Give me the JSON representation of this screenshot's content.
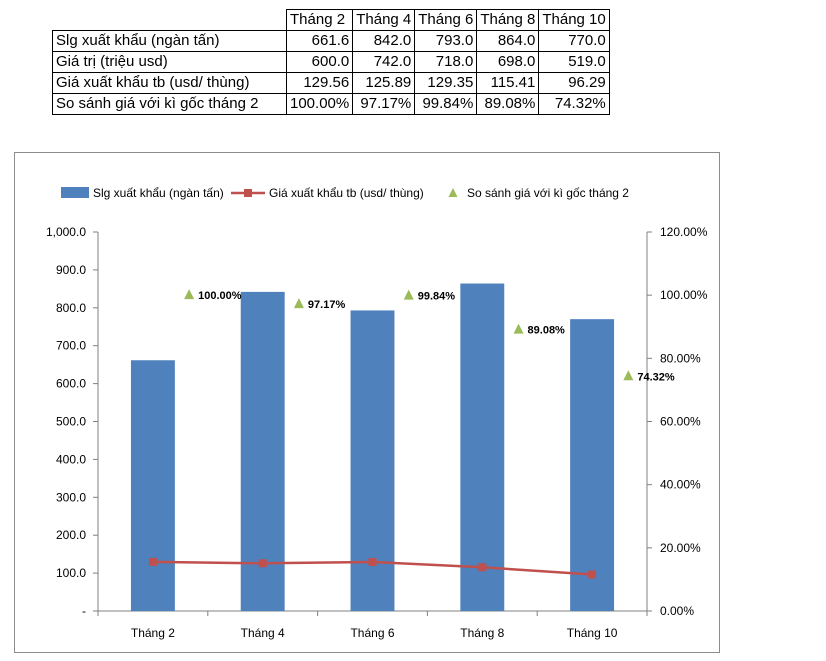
{
  "table": {
    "headers": [
      "Tháng 2",
      "Tháng 4",
      "Tháng 6",
      "Tháng 8",
      "Tháng 10"
    ],
    "rows": [
      {
        "label": "Slg xuất khẩu (ngàn tấn)",
        "cells": [
          "661.6",
          "842.0",
          "793.0",
          "864.0",
          "770.0"
        ]
      },
      {
        "label": "Giá trị (triệu usd)",
        "cells": [
          "600.0",
          "742.0",
          "718.0",
          "698.0",
          "519.0"
        ]
      },
      {
        "label": "Giá xuất khẩu tb (usd/ thùng)",
        "cells": [
          "129.56",
          "125.89",
          "129.35",
          "115.41",
          "96.29"
        ]
      },
      {
        "label": "So sánh giá với kì gốc tháng 2",
        "cells": [
          "100.00%",
          "97.17%",
          "99.84%",
          "89.08%",
          "74.32%"
        ]
      }
    ]
  },
  "chart_data": {
    "type": "bar",
    "categories": [
      "Tháng 2",
      "Tháng 4",
      "Tháng 6",
      "Tháng 8",
      "Tháng 10"
    ],
    "series": [
      {
        "name": "Slg xuất khẩu (ngàn tấn)",
        "type": "bar",
        "axis": "left",
        "color": "#4f81bd",
        "values": [
          661.6,
          842.0,
          793.0,
          864.0,
          770.0
        ]
      },
      {
        "name": "Giá xuất khẩu tb (usd/ thùng)",
        "type": "line",
        "axis": "left",
        "color": "#c0504d",
        "values": [
          129.56,
          125.89,
          129.35,
          115.41,
          96.29
        ]
      },
      {
        "name": "So sánh giá với kì gốc tháng 2",
        "type": "scatter",
        "axis": "right",
        "color": "#9bbb59",
        "values": [
          1.0,
          0.9717,
          0.9984,
          0.8908,
          0.7432
        ],
        "labels": [
          "100.00%",
          "97.17%",
          "99.84%",
          "89.08%",
          "74.32%"
        ]
      }
    ],
    "left_axis": {
      "min": 0,
      "max": 1000,
      "ticks": [
        "-",
        "100.0",
        "200.0",
        "300.0",
        "400.0",
        "500.0",
        "600.0",
        "700.0",
        "800.0",
        "900.0",
        "1,000.0"
      ]
    },
    "right_axis": {
      "min": 0,
      "max": 1.2,
      "ticks": [
        "0.00%",
        "20.00%",
        "40.00%",
        "60.00%",
        "80.00%",
        "100.00%",
        "120.00%"
      ]
    },
    "grid": false,
    "legend_position": "top"
  }
}
